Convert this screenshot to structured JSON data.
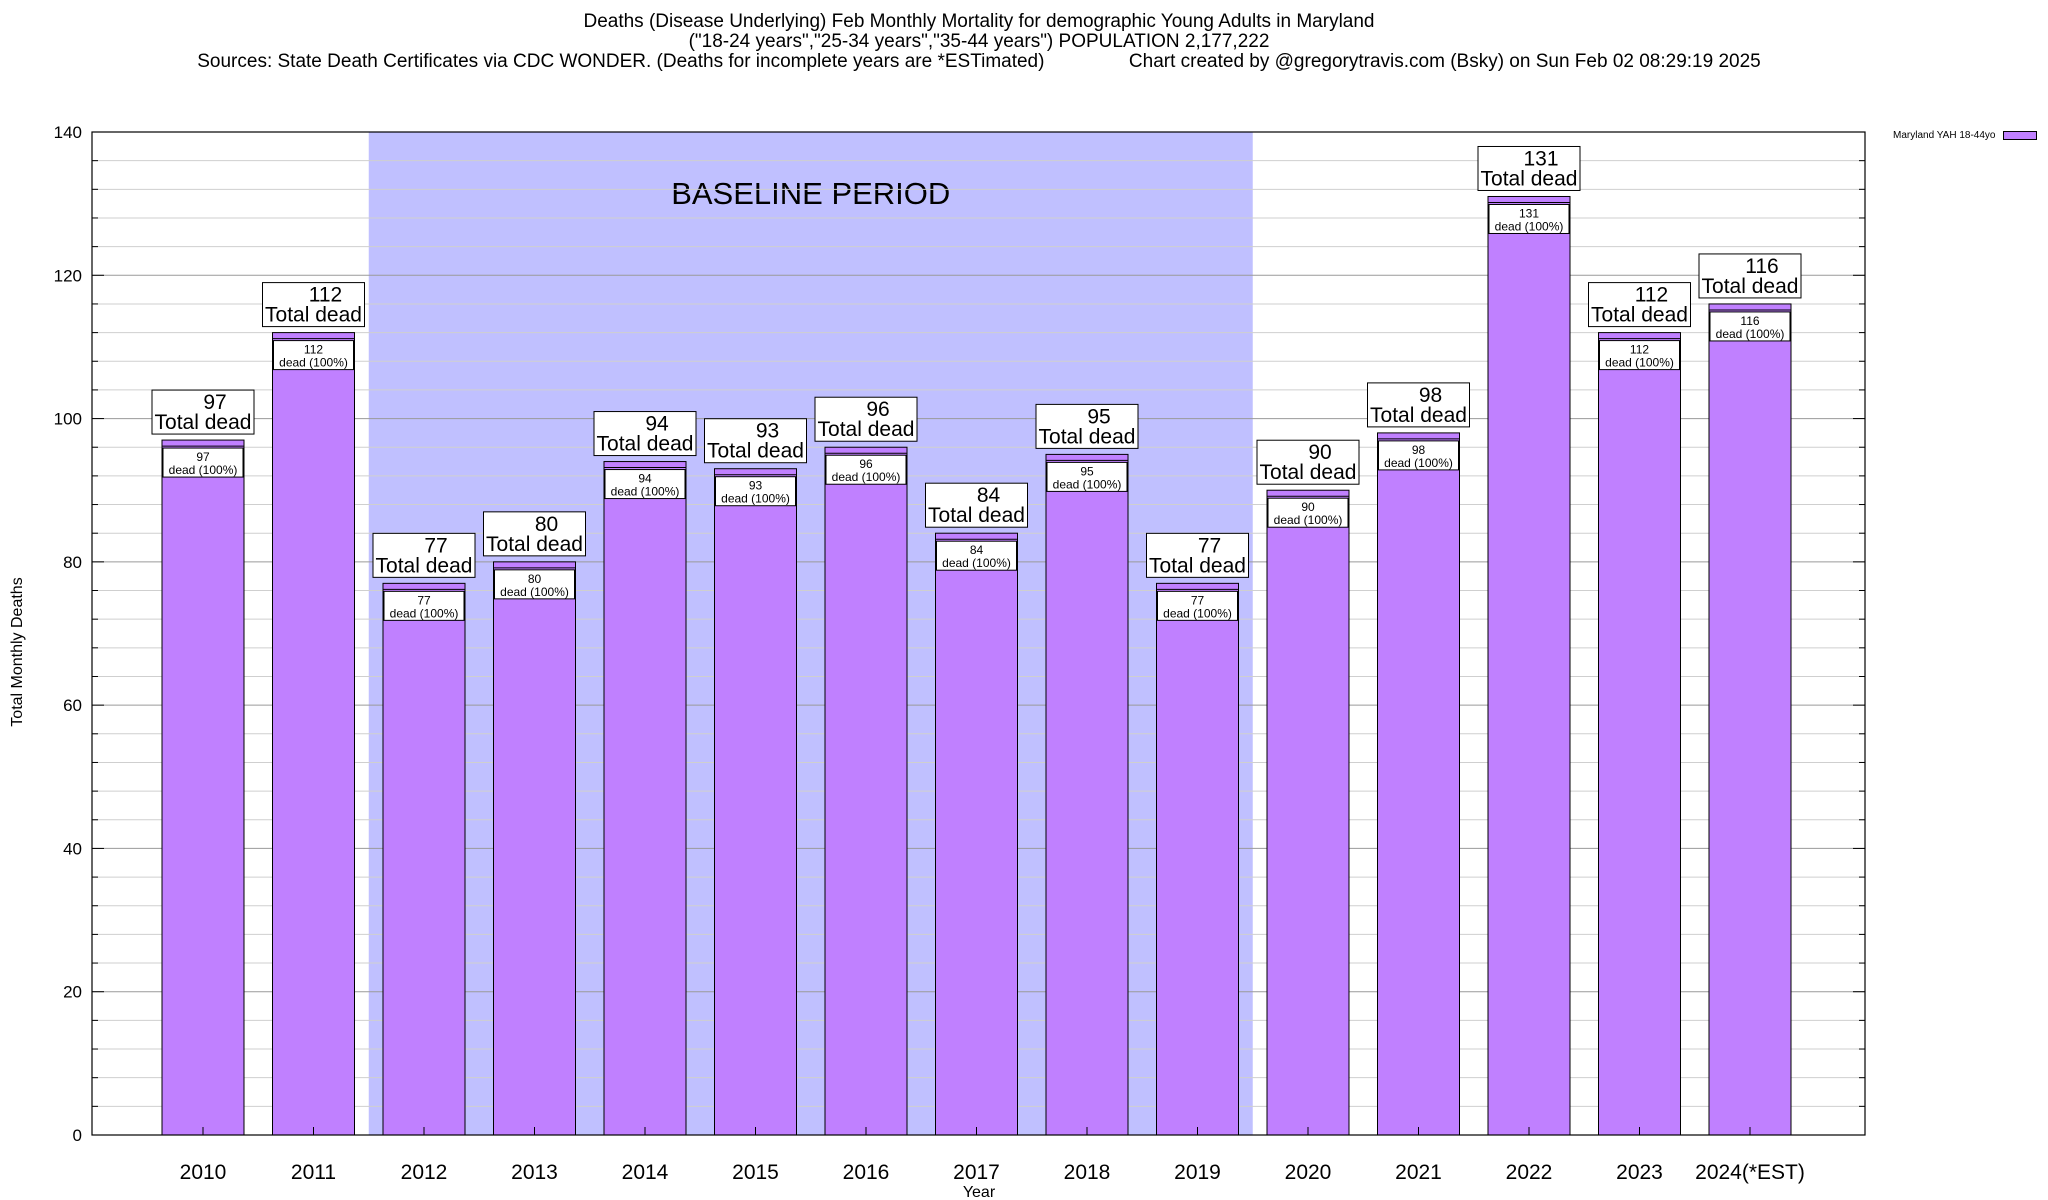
{
  "chart_data": {
    "type": "bar",
    "title_lines": [
      "Deaths (Disease Underlying) Feb Monthly Mortality for demographic Young Adults in Maryland",
      "(\"18-24 years\",\"25-34 years\",\"35-44 years\") POPULATION 2,177,222",
      "Sources: State Death Certificates via CDC WONDER. (Deaths for incomplete years are *ESTimated)                Chart created by @gregorytravis.com (Bsky) on Sun Feb 02 08:29:19 2025"
    ],
    "xlabel": "Year",
    "ylabel": "Total Monthly Deaths",
    "ylim": [
      0,
      140
    ],
    "y_ticks": [
      0,
      20,
      40,
      60,
      80,
      100,
      120,
      140
    ],
    "categories": [
      "2010",
      "2011",
      "2012",
      "2013",
      "2014",
      "2015",
      "2016",
      "2017",
      "2018",
      "2019",
      "2020",
      "2021",
      "2022",
      "2023",
      "2024(*EST)"
    ],
    "series": [
      {
        "name": "Maryland YAH 18-44yo",
        "color": "#c080ff",
        "values": [
          97,
          112,
          77,
          80,
          94,
          93,
          96,
          84,
          95,
          77,
          90,
          98,
          131,
          112,
          116
        ]
      }
    ],
    "top_label_suffix": "Total dead",
    "inner_label_suffix": "dead (100%)",
    "baseline_period": {
      "label": "BASELINE PERIOD",
      "start": "2012",
      "end": "2019",
      "color": "#c0c0ff"
    },
    "grid": true,
    "legend_position": "top-right"
  }
}
